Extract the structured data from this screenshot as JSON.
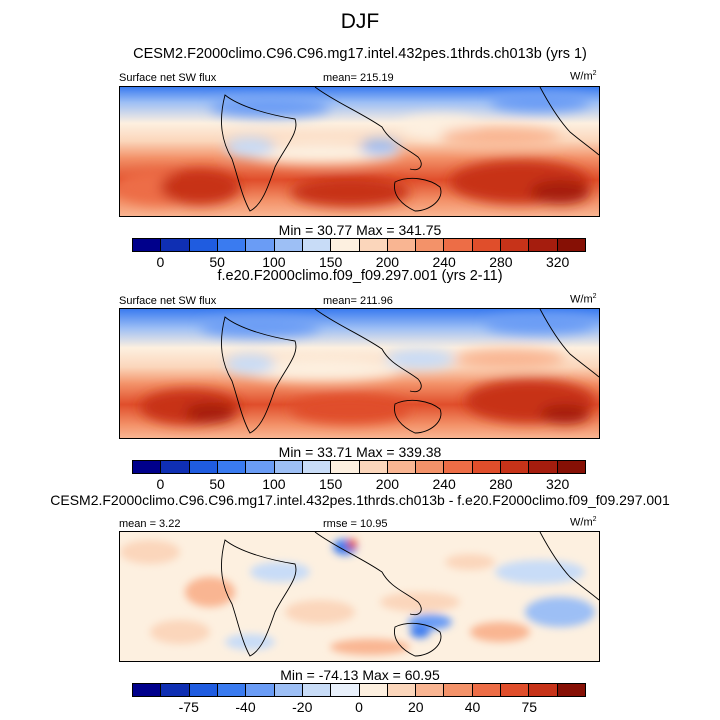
{
  "chart_data": [
    {
      "type": "heatmap",
      "title": "DJF",
      "panel_title": "CESM2.F2000climo.C96.C96.mg17.intel.432pes.1thrds.ch013b (yrs 1)",
      "left_label": "Surface net SW flux",
      "center_label": "mean= 215.19",
      "units": "W/m",
      "units_sup": "2",
      "min_max": "Min =  30.77 Max = 341.75",
      "colorbar_ticks": [
        "0",
        "50",
        "100",
        "150",
        "200",
        "240",
        "280",
        "320"
      ],
      "colorbar_colors": [
        "#00008b",
        "#0f2fb3",
        "#1f5ce0",
        "#3a7bf0",
        "#6a9cf5",
        "#9dbff5",
        "#c8dcf7",
        "#fdf0e0",
        "#fbd6bb",
        "#f9b592",
        "#f39269",
        "#ed6d46",
        "#e04e2b",
        "#c73319",
        "#a51d0e",
        "#861005"
      ]
    },
    {
      "type": "heatmap",
      "panel_title": "f.e20.F2000climo.f09_f09.297.001 (yrs 2-11)",
      "left_label": "Surface net SW flux",
      "center_label": "mean= 211.96",
      "units": "W/m",
      "units_sup": "2",
      "min_max": "Min =  33.71 Max = 339.38",
      "colorbar_ticks": [
        "0",
        "50",
        "100",
        "150",
        "200",
        "240",
        "280",
        "320"
      ],
      "colorbar_colors": [
        "#00008b",
        "#0f2fb3",
        "#1f5ce0",
        "#3a7bf0",
        "#6a9cf5",
        "#9dbff5",
        "#c8dcf7",
        "#fdf0e0",
        "#fbd6bb",
        "#f9b592",
        "#f39269",
        "#ed6d46",
        "#e04e2b",
        "#c73319",
        "#a51d0e",
        "#861005"
      ]
    },
    {
      "type": "heatmap",
      "panel_title": "CESM2.F2000climo.C96.C96.mg17.intel.432pes.1thrds.ch013b - f.e20.F2000climo.f09_f09.297.001",
      "left_label": "mean =   3.22",
      "center_label": "rmse =  10.95",
      "units": "W/m",
      "units_sup": "2",
      "min_max": "Min = -74.13 Max =  60.95",
      "colorbar_ticks": [
        "-75",
        "-40",
        "-20",
        "0",
        "20",
        "40",
        "75"
      ],
      "colorbar_colors": [
        "#00008b",
        "#0f2fb3",
        "#1f5ce0",
        "#3a7bf0",
        "#6a9cf5",
        "#9dbff5",
        "#c8dcf7",
        "#e8f0fb",
        "#fdf0e0",
        "#fbd6bb",
        "#f9b592",
        "#f39269",
        "#ed6d46",
        "#e04e2b",
        "#c73319",
        "#861005"
      ]
    }
  ]
}
